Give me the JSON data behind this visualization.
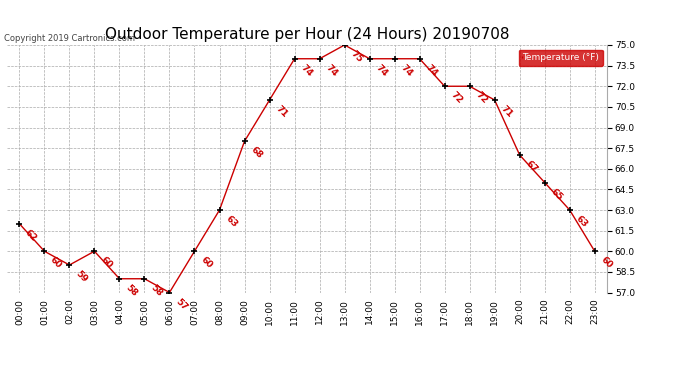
{
  "title": "Outdoor Temperature per Hour (24 Hours) 20190708",
  "copyright": "Copyright 2019 Cartronics.com",
  "legend_label": "Temperature (°F)",
  "hours": [
    "00:00",
    "01:00",
    "02:00",
    "03:00",
    "04:00",
    "05:00",
    "06:00",
    "07:00",
    "08:00",
    "09:00",
    "10:00",
    "11:00",
    "12:00",
    "13:00",
    "14:00",
    "15:00",
    "16:00",
    "17:00",
    "18:00",
    "19:00",
    "20:00",
    "21:00",
    "22:00",
    "23:00"
  ],
  "temps": [
    62,
    60,
    59,
    60,
    58,
    58,
    57,
    60,
    63,
    68,
    71,
    74,
    74,
    75,
    74,
    74,
    74,
    72,
    72,
    71,
    67,
    65,
    63,
    60
  ],
  "ylim_min": 57.0,
  "ylim_max": 75.0,
  "yticks": [
    57.0,
    58.5,
    60.0,
    61.5,
    63.0,
    64.5,
    66.0,
    67.5,
    69.0,
    70.5,
    72.0,
    73.5,
    75.0
  ],
  "line_color": "#cc0000",
  "marker_color": "#000000",
  "label_color": "#cc0000",
  "bg_color": "#ffffff",
  "grid_color": "#aaaaaa",
  "legend_bg": "#cc0000",
  "legend_text_color": "#ffffff",
  "title_fontsize": 11,
  "label_fontsize": 6.5,
  "tick_fontsize": 6.5,
  "copyright_fontsize": 6
}
